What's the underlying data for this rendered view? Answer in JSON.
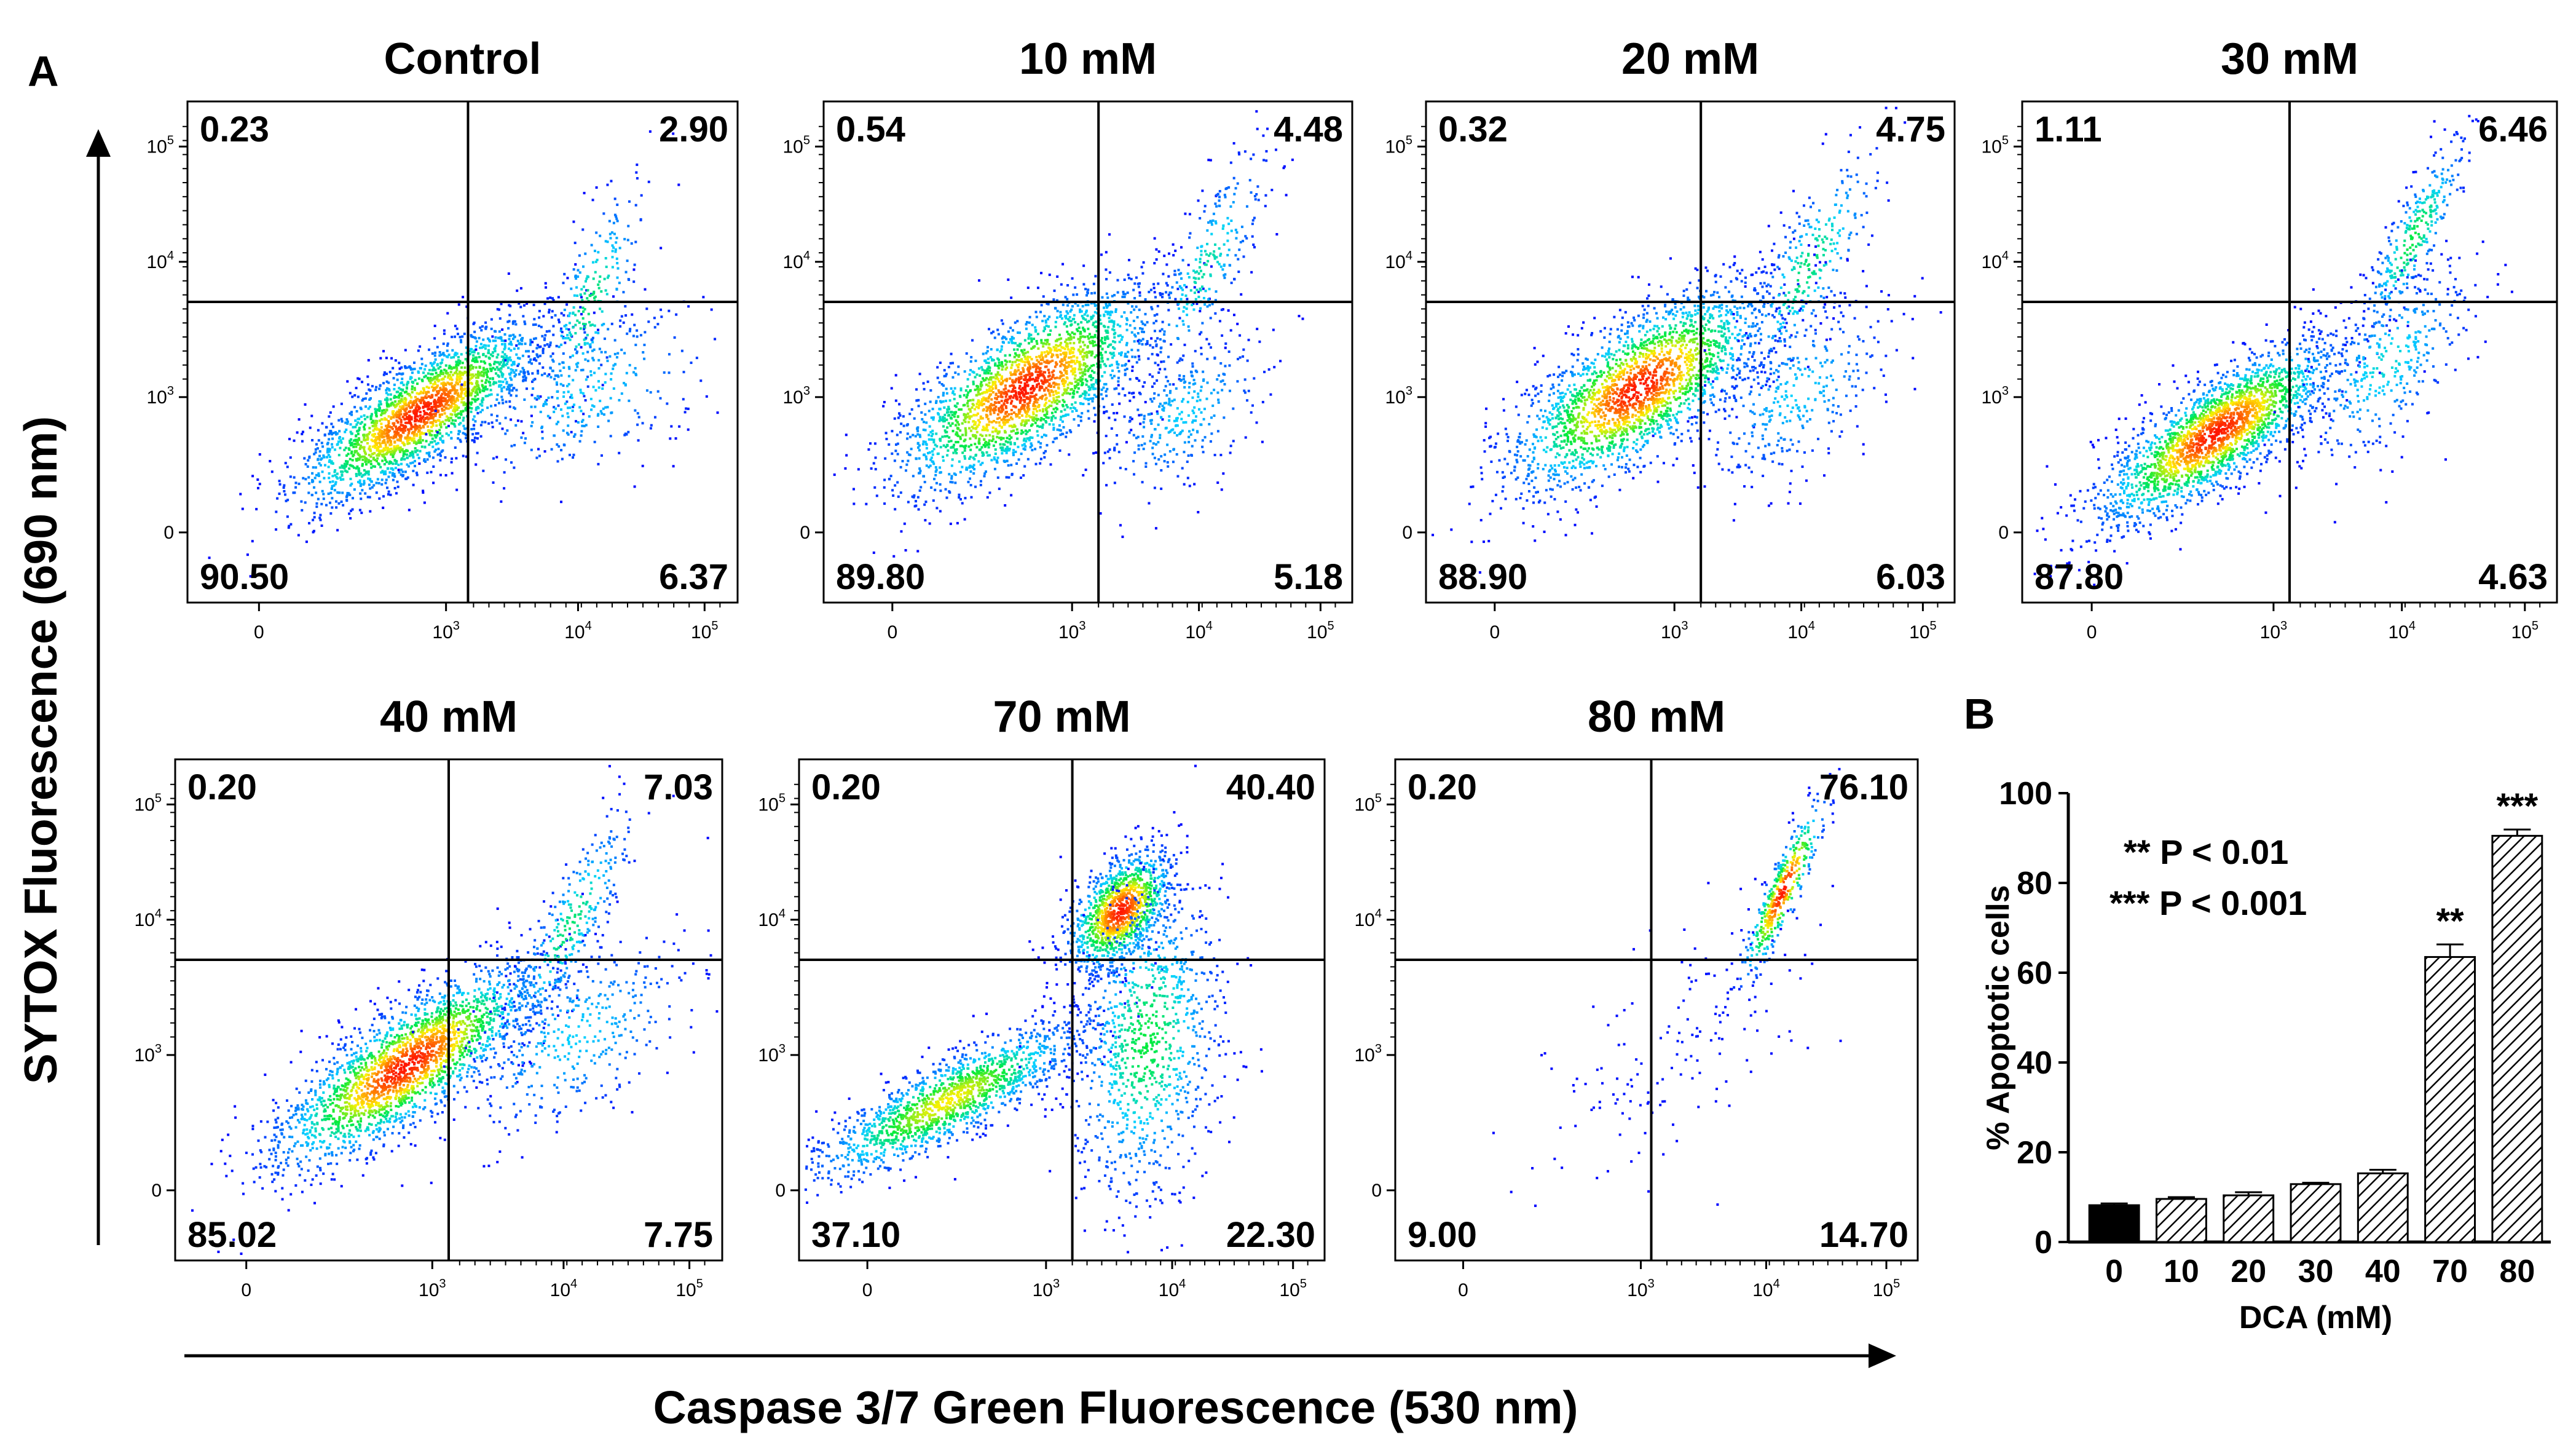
{
  "panel_a_label": "A",
  "panel_b_label": "B",
  "y_axis_title": "SYTOX  Fluorescence (690 nm)",
  "x_axis_title": "Caspase 3/7 Green Fluorescence (530 nm)",
  "colors": {
    "density_low": "#0000ff",
    "density_mid": "#00ff00",
    "density_high": "#ff0000",
    "gate_lines": "#000000"
  },
  "chart_data": [
    {
      "type": "scatter",
      "subtype": "flow-cytometry-density-plot",
      "x_scale": "biexponential",
      "y_scale": "biexponential",
      "x_ticks": [
        {
          "label": "0",
          "base": "0",
          "exp": ""
        },
        {
          "label": "10^3",
          "base": "10",
          "exp": "3"
        },
        {
          "label": "10^4",
          "base": "10",
          "exp": "4"
        },
        {
          "label": "10^5",
          "base": "10",
          "exp": "5"
        }
      ],
      "y_ticks": [
        {
          "label": "0",
          "base": "0",
          "exp": ""
        },
        {
          "label": "10^3",
          "base": "10",
          "exp": "3"
        },
        {
          "label": "10^4",
          "base": "10",
          "exp": "4"
        },
        {
          "label": "10^5",
          "base": "10",
          "exp": "5"
        }
      ],
      "panels": [
        {
          "title": "Control",
          "quadrants": {
            "upper_left": "0.23",
            "upper_right": "2.90",
            "lower_left": "90.50",
            "lower_right": "6.37"
          }
        },
        {
          "title": "10 mM",
          "quadrants": {
            "upper_left": "0.54",
            "upper_right": "4.48",
            "lower_left": "89.80",
            "lower_right": "5.18"
          }
        },
        {
          "title": "20 mM",
          "quadrants": {
            "upper_left": "0.32",
            "upper_right": "4.75",
            "lower_left": "88.90",
            "lower_right": "6.03"
          }
        },
        {
          "title": "30 mM",
          "quadrants": {
            "upper_left": "1.11",
            "upper_right": "6.46",
            "lower_left": "87.80",
            "lower_right": "4.63"
          }
        },
        {
          "title": "40 mM",
          "quadrants": {
            "upper_left": "0.20",
            "upper_right": "7.03",
            "lower_left": "85.02",
            "lower_right": "7.75"
          }
        },
        {
          "title": "70 mM",
          "quadrants": {
            "upper_left": "0.20",
            "upper_right": "40.40",
            "lower_left": "37.10",
            "lower_right": "22.30"
          }
        },
        {
          "title": "80 mM",
          "quadrants": {
            "upper_left": "0.20",
            "upper_right": "76.10",
            "lower_left": "9.00",
            "lower_right": "14.70"
          }
        }
      ]
    },
    {
      "type": "bar",
      "categories": [
        "0",
        "10",
        "20",
        "30",
        "40",
        "70",
        "80"
      ],
      "values": [
        8.2,
        9.6,
        10.4,
        12.9,
        15.3,
        63.5,
        90.5
      ],
      "errors": [
        0.4,
        0.4,
        0.7,
        0.3,
        0.8,
        2.8,
        1.4
      ],
      "significance": [
        "",
        "",
        "",
        "",
        "",
        "**",
        "***"
      ],
      "fills": [
        "solid",
        "hatched",
        "hatched",
        "hatched",
        "hatched",
        "hatched",
        "hatched"
      ],
      "xlabel": "DCA (mM)",
      "ylabel": "% Apoptotic cells",
      "ylim": [
        0,
        100
      ],
      "yticks": [
        "0",
        "20",
        "40",
        "60",
        "80",
        "100"
      ],
      "annotations": [
        "** P < 0.01",
        "*** P < 0.001"
      ]
    }
  ]
}
